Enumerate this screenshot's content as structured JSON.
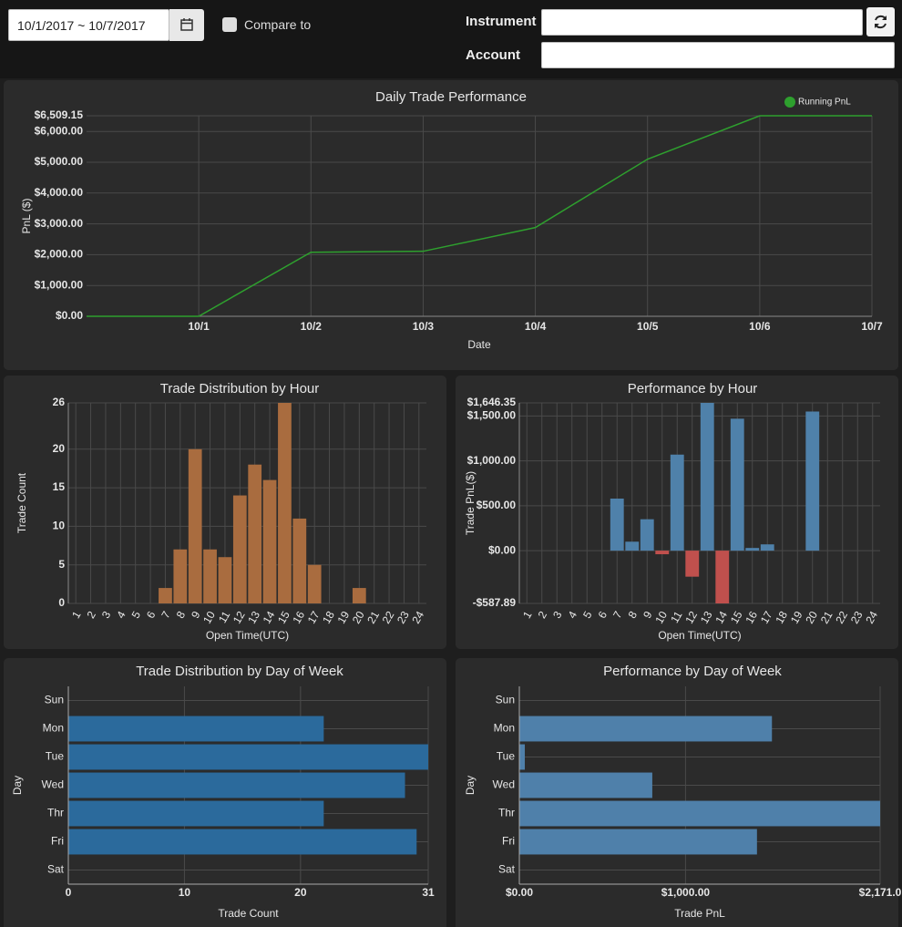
{
  "toolbar": {
    "date_range": "10/1/2017 ~ 10/7/2017",
    "compare_label": "Compare to",
    "instrument_label": "Instrument",
    "account_label": "Account"
  },
  "chart_data": [
    {
      "type": "line",
      "title": "Daily Trade Performance",
      "xlabel": "Date",
      "ylabel": "PnL ($)",
      "categories": [
        null,
        "10/1",
        "10/2",
        "10/3",
        "10/4",
        "10/5",
        "10/6",
        "10/7"
      ],
      "series": [
        {
          "name": "Running PnL",
          "color": "#2ea02e",
          "values": [
            0,
            0,
            2080,
            2110,
            2880,
            5100,
            6509.15,
            6509.15
          ]
        }
      ],
      "ylim": [
        0,
        6509.15
      ],
      "yticks": [
        {
          "value": 0,
          "label": "$0.00"
        },
        {
          "value": 1000,
          "label": "$1,000.00"
        },
        {
          "value": 2000,
          "label": "$2,000.00"
        },
        {
          "value": 3000,
          "label": "$3,000.00"
        },
        {
          "value": 4000,
          "label": "$4,000.00"
        },
        {
          "value": 5000,
          "label": "$5,000.00"
        },
        {
          "value": 6000,
          "label": "$6,000.00"
        },
        {
          "value": 6509.15,
          "label": "$6,509.15"
        }
      ],
      "grid": true,
      "legend": "top-right"
    },
    {
      "type": "bar",
      "title": "Trade Distribution by Hour",
      "xlabel": "Open Time(UTC)",
      "ylabel": "Trade Count",
      "categories": [
        "1",
        "2",
        "3",
        "4",
        "5",
        "6",
        "7",
        "8",
        "9",
        "10",
        "11",
        "12",
        "13",
        "14",
        "15",
        "16",
        "17",
        "18",
        "19",
        "20",
        "21",
        "22",
        "23",
        "24"
      ],
      "values": [
        0,
        0,
        0,
        0,
        0,
        0,
        2,
        7,
        20,
        7,
        6,
        14,
        18,
        16,
        26,
        11,
        5,
        0,
        0,
        2,
        0,
        0,
        0,
        0
      ],
      "color": "#a96c3f",
      "ylim": [
        0,
        26
      ],
      "yticks": [
        0,
        5,
        10,
        15,
        20,
        26
      ],
      "grid": true
    },
    {
      "type": "bar",
      "title": "Performance by Hour",
      "xlabel": "Open Time(UTC)",
      "ylabel": "Trade PnL($)",
      "categories": [
        "1",
        "2",
        "3",
        "4",
        "5",
        "6",
        "7",
        "8",
        "9",
        "10",
        "11",
        "12",
        "13",
        "14",
        "15",
        "16",
        "17",
        "18",
        "19",
        "20",
        "21",
        "22",
        "23",
        "24"
      ],
      "values": [
        0,
        0,
        0,
        0,
        0,
        0,
        580,
        100,
        350,
        -40,
        1070,
        -290,
        1646.35,
        -587.89,
        1470,
        30,
        70,
        0,
        0,
        1550,
        0,
        0,
        0,
        0
      ],
      "color": "#4f81aa",
      "negative_color": "#c0504d",
      "ylim": [
        -587.89,
        1646.35
      ],
      "yticks": [
        {
          "value": -587.89,
          "label": "-$587.89"
        },
        {
          "value": 0,
          "label": "$0.00"
        },
        {
          "value": 500,
          "label": "$500.00"
        },
        {
          "value": 1000,
          "label": "$1,000.00"
        },
        {
          "value": 1500,
          "label": "$1,500.00"
        },
        {
          "value": 1646.35,
          "label": "$1,646.35"
        }
      ],
      "grid": true
    },
    {
      "type": "hbar",
      "title": "Trade Distribution by Day of Week",
      "xlabel": "Trade Count",
      "ylabel": "Day",
      "categories": [
        "Sun",
        "Mon",
        "Tue",
        "Wed",
        "Thr",
        "Fri",
        "Sat"
      ],
      "values": [
        0,
        22,
        31,
        29,
        22,
        30,
        0
      ],
      "color": "#2b6a9c",
      "xlim": [
        0,
        31
      ],
      "xticks": [
        0,
        10,
        20,
        31
      ],
      "grid": true
    },
    {
      "type": "hbar",
      "title": "Performance by Day of Week",
      "xlabel": "Trade PnL",
      "ylabel": "Day",
      "categories": [
        "Sun",
        "Mon",
        "Tue",
        "Wed",
        "Thr",
        "Fri",
        "Sat"
      ],
      "values": [
        0,
        1520,
        33,
        800,
        2171,
        1430,
        0
      ],
      "color": "#4f80aa",
      "xlim": [
        0,
        2171
      ],
      "xticks": [
        {
          "value": 0,
          "label": "$0.00"
        },
        {
          "value": 1000,
          "label": "$1,000.00"
        },
        {
          "value": 2171,
          "label": "$2,171.0"
        }
      ],
      "grid": true
    }
  ]
}
